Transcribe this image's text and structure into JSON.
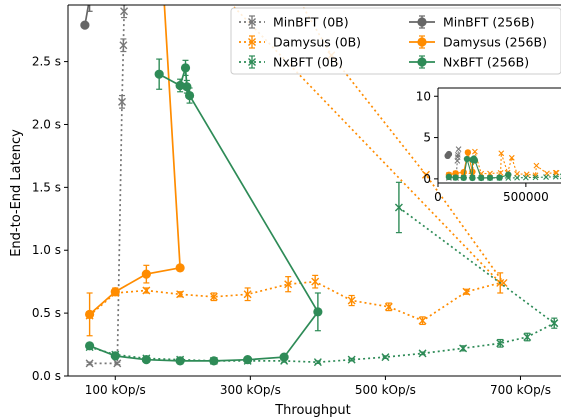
{
  "chart_data": {
    "type": "line",
    "xlabel": "Throughput",
    "ylabel": "End-to-End Latency",
    "xlim": [
      30000,
      760000
    ],
    "ylim": [
      0,
      2.95
    ],
    "x_ticks": [
      {
        "value": 100000,
        "label": "100 kOp/s"
      },
      {
        "value": 300000,
        "label": "300 kOp/s"
      },
      {
        "value": 500000,
        "label": "500 kOp/s"
      },
      {
        "value": 700000,
        "label": "700 kOp/s"
      }
    ],
    "y_ticks": [
      {
        "value": 0,
        "label": "0.0 s"
      },
      {
        "value": 0.5,
        "label": "0.5 s"
      },
      {
        "value": 1.0,
        "label": "1.0 s"
      },
      {
        "value": 1.5,
        "label": "1.5 s"
      },
      {
        "value": 2.0,
        "label": "2.0 s"
      },
      {
        "value": 2.5,
        "label": "2.5 s"
      }
    ],
    "legend_position": "top-right",
    "series": [
      {
        "name": "MinBFT (0B)",
        "color": "#777777",
        "style": "dotted",
        "marker": "x",
        "points": [
          [
            62000,
            0.1
          ],
          [
            103000,
            0.1
          ],
          [
            110000,
            2.18
          ],
          [
            112000,
            2.63
          ],
          [
            113000,
            2.9
          ],
          [
            117000,
            3.6
          ]
        ],
        "errors": [
          0.01,
          0.01,
          0.05,
          0.05,
          0.05,
          0
        ]
      },
      {
        "name": "Damysus (0B)",
        "color": "#ff8c00",
        "style": "dotted",
        "marker": "x",
        "points": [
          [
            62000,
            0.48
          ],
          [
            100000,
            0.66
          ],
          [
            146000,
            0.68
          ],
          [
            196000,
            0.65
          ],
          [
            246000,
            0.63
          ],
          [
            296000,
            0.65
          ],
          [
            356000,
            0.73
          ],
          [
            396000,
            0.75
          ],
          [
            450000,
            0.6
          ],
          [
            505000,
            0.55
          ],
          [
            555000,
            0.44
          ],
          [
            620000,
            0.67
          ],
          [
            670000,
            0.74
          ],
          [
            210000,
            3.3
          ],
          [
            360000,
            3.1
          ],
          [
            420000,
            2.55
          ],
          [
            560000,
            1.6
          ],
          [
            675000,
            0.74
          ]
        ],
        "errors": [
          0.02,
          0.02,
          0.02,
          0.02,
          0.03,
          0.05,
          0.06,
          0.05,
          0.04,
          0.03,
          0.03,
          0.02,
          0.08,
          0,
          0,
          0,
          0,
          0
        ]
      },
      {
        "name": "NxBFT (0B)",
        "color": "#2e8b57",
        "style": "dotted",
        "marker": "x",
        "points": [
          [
            62000,
            0.23
          ],
          [
            100000,
            0.17
          ],
          [
            146000,
            0.14
          ],
          [
            196000,
            0.13
          ],
          [
            246000,
            0.12
          ],
          [
            296000,
            0.12
          ],
          [
            350000,
            0.12
          ],
          [
            400000,
            0.11
          ],
          [
            450000,
            0.13
          ],
          [
            500000,
            0.15
          ],
          [
            555000,
            0.18
          ],
          [
            615000,
            0.22
          ],
          [
            670000,
            0.26
          ],
          [
            710000,
            0.31
          ],
          [
            750000,
            0.42
          ]
        ],
        "errors": [
          0.01,
          0.01,
          0.01,
          0.01,
          0.01,
          0.01,
          0.01,
          0.01,
          0.01,
          0.01,
          0.01,
          0.02,
          0.03,
          0.03,
          0.04
        ]
      },
      {
        "name": "MinBFT (256B)",
        "color": "#666666",
        "style": "solid",
        "marker": "o",
        "points": [
          [
            55000,
            2.79
          ],
          [
            62000,
            3.0
          ]
        ],
        "errors": [
          0,
          0.1
        ]
      },
      {
        "name": "Damysus (256B)",
        "color": "#ff8c00",
        "style": "solid",
        "marker": "o",
        "points": [
          [
            62000,
            0.49
          ],
          [
            100000,
            0.67
          ],
          [
            146000,
            0.81
          ],
          [
            196000,
            0.86
          ],
          [
            170000,
            3.2
          ]
        ],
        "errors": [
          0.17,
          0.03,
          0.07,
          0.02,
          0
        ]
      },
      {
        "name": "NxBFT (256B)",
        "color": "#2e8b57",
        "style": "solid",
        "marker": "o",
        "points": [
          [
            62000,
            0.24
          ],
          [
            100000,
            0.16
          ],
          [
            146000,
            0.13
          ],
          [
            196000,
            0.12
          ],
          [
            246000,
            0.12
          ],
          [
            296000,
            0.13
          ],
          [
            350000,
            0.15
          ],
          [
            400000,
            0.51
          ],
          [
            210000,
            2.23
          ],
          [
            206000,
            2.3
          ],
          [
            204000,
            2.45
          ],
          [
            196000,
            2.31
          ],
          [
            165000,
            2.4
          ]
        ],
        "errors": [
          0.01,
          0.01,
          0.01,
          0.01,
          0.01,
          0.01,
          0.02,
          0.15,
          0.06,
          0.05,
          0.06,
          0.05,
          0.12
        ]
      }
    ],
    "extra_segments": [
      {
        "series": "NxBFT (0B)",
        "points": [
          [
            520000,
            1.34
          ],
          [
            750000,
            0.42
          ]
        ],
        "errors": [
          0.2,
          0
        ]
      }
    ],
    "inset": {
      "xlim": [
        0,
        700000
      ],
      "ylim": [
        -0.5,
        11
      ],
      "x_ticks": [
        {
          "value": 0,
          "label": "0"
        },
        {
          "value": 500000,
          "label": "500000"
        }
      ],
      "y_ticks": [
        {
          "value": 0,
          "label": "0"
        },
        {
          "value": 5,
          "label": "5"
        },
        {
          "value": 10,
          "label": "10"
        }
      ]
    }
  }
}
